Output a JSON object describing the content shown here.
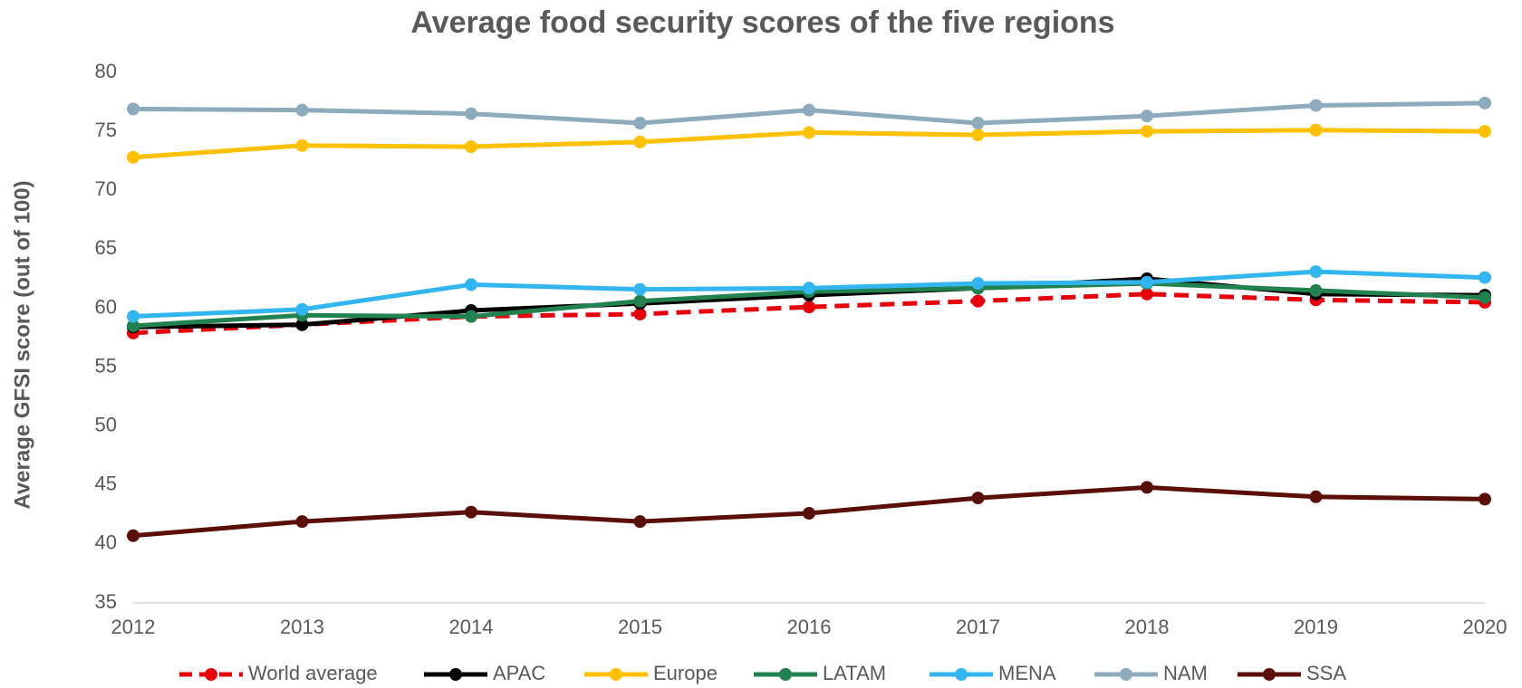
{
  "chart_data": {
    "type": "line",
    "title": "Average food security scores of the five regions",
    "y_label": "Average GFSI score (out of 100)",
    "categories": [
      "2012",
      "2013",
      "2014",
      "2015",
      "2016",
      "2017",
      "2018",
      "2019",
      "2020"
    ],
    "ylim": [
      35,
      80
    ],
    "yticks": [
      35,
      40,
      45,
      50,
      55,
      60,
      65,
      70,
      75,
      80
    ],
    "grid": false,
    "legend": "bottom",
    "series": [
      {
        "name": "World average",
        "color": "#e8000b",
        "dashed": true,
        "values": [
          57.9,
          58.6,
          59.3,
          59.5,
          60.1,
          60.6,
          61.2,
          60.7,
          60.5
        ]
      },
      {
        "name": "APAC",
        "color": "#000000",
        "values": [
          58.4,
          58.6,
          59.8,
          60.4,
          61.1,
          61.7,
          62.5,
          61.2,
          61.1
        ]
      },
      {
        "name": "Europe",
        "color": "#ffc000",
        "values": [
          72.8,
          73.8,
          73.7,
          74.1,
          74.9,
          74.7,
          75.0,
          75.1,
          75.0
        ]
      },
      {
        "name": "LATAM",
        "color": "#21824f",
        "values": [
          58.5,
          59.4,
          59.3,
          60.6,
          61.4,
          61.7,
          62.1,
          61.5,
          60.9
        ]
      },
      {
        "name": "MENA",
        "color": "#33b5f0",
        "values": [
          59.3,
          59.9,
          62.0,
          61.6,
          61.7,
          62.1,
          62.2,
          63.1,
          62.6
        ]
      },
      {
        "name": "NAM",
        "color": "#8eaabd",
        "values": [
          76.9,
          76.8,
          76.5,
          75.7,
          76.8,
          75.7,
          76.3,
          77.2,
          77.4
        ]
      },
      {
        "name": "SSA",
        "color": "#5a1008",
        "values": [
          40.7,
          41.9,
          42.7,
          41.9,
          42.6,
          43.9,
          44.8,
          44.0,
          43.8
        ]
      }
    ]
  }
}
